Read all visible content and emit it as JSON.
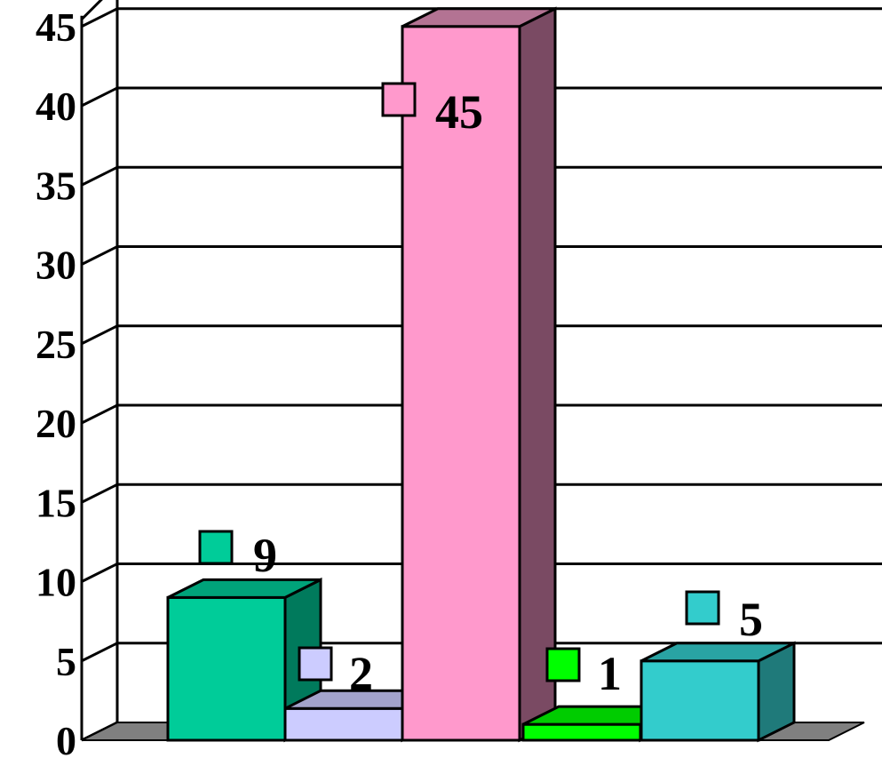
{
  "chart_data": {
    "type": "bar",
    "style": "3d-column",
    "series": [
      {
        "value": 9,
        "label": "9",
        "color": "#00CC99",
        "side_color": "#007A5C",
        "top_color": "#00A37A"
      },
      {
        "value": 2,
        "label": "2",
        "color": "#CCCCFF",
        "side_color": "#7A7A99",
        "top_color": "#A3A3CC"
      },
      {
        "value": 45,
        "label": "45",
        "color": "#FF99CC",
        "side_color": "#7A4A63",
        "top_color": "#B37393"
      },
      {
        "value": 1,
        "label": "1",
        "color": "#00FF00",
        "side_color": "#009900",
        "top_color": "#00CC00"
      },
      {
        "value": 5,
        "label": "5",
        "color": "#33CCCC",
        "side_color": "#1F7A7A",
        "top_color": "#29A3A3"
      }
    ],
    "y_ticks": [
      0,
      5,
      10,
      15,
      20,
      25,
      30,
      35,
      40,
      45
    ],
    "ylim": [
      0,
      45
    ],
    "grid": true,
    "legend": "none",
    "colors": {
      "gridline": "#000000",
      "floor": "#808080",
      "background": "#FFFFFF"
    }
  }
}
